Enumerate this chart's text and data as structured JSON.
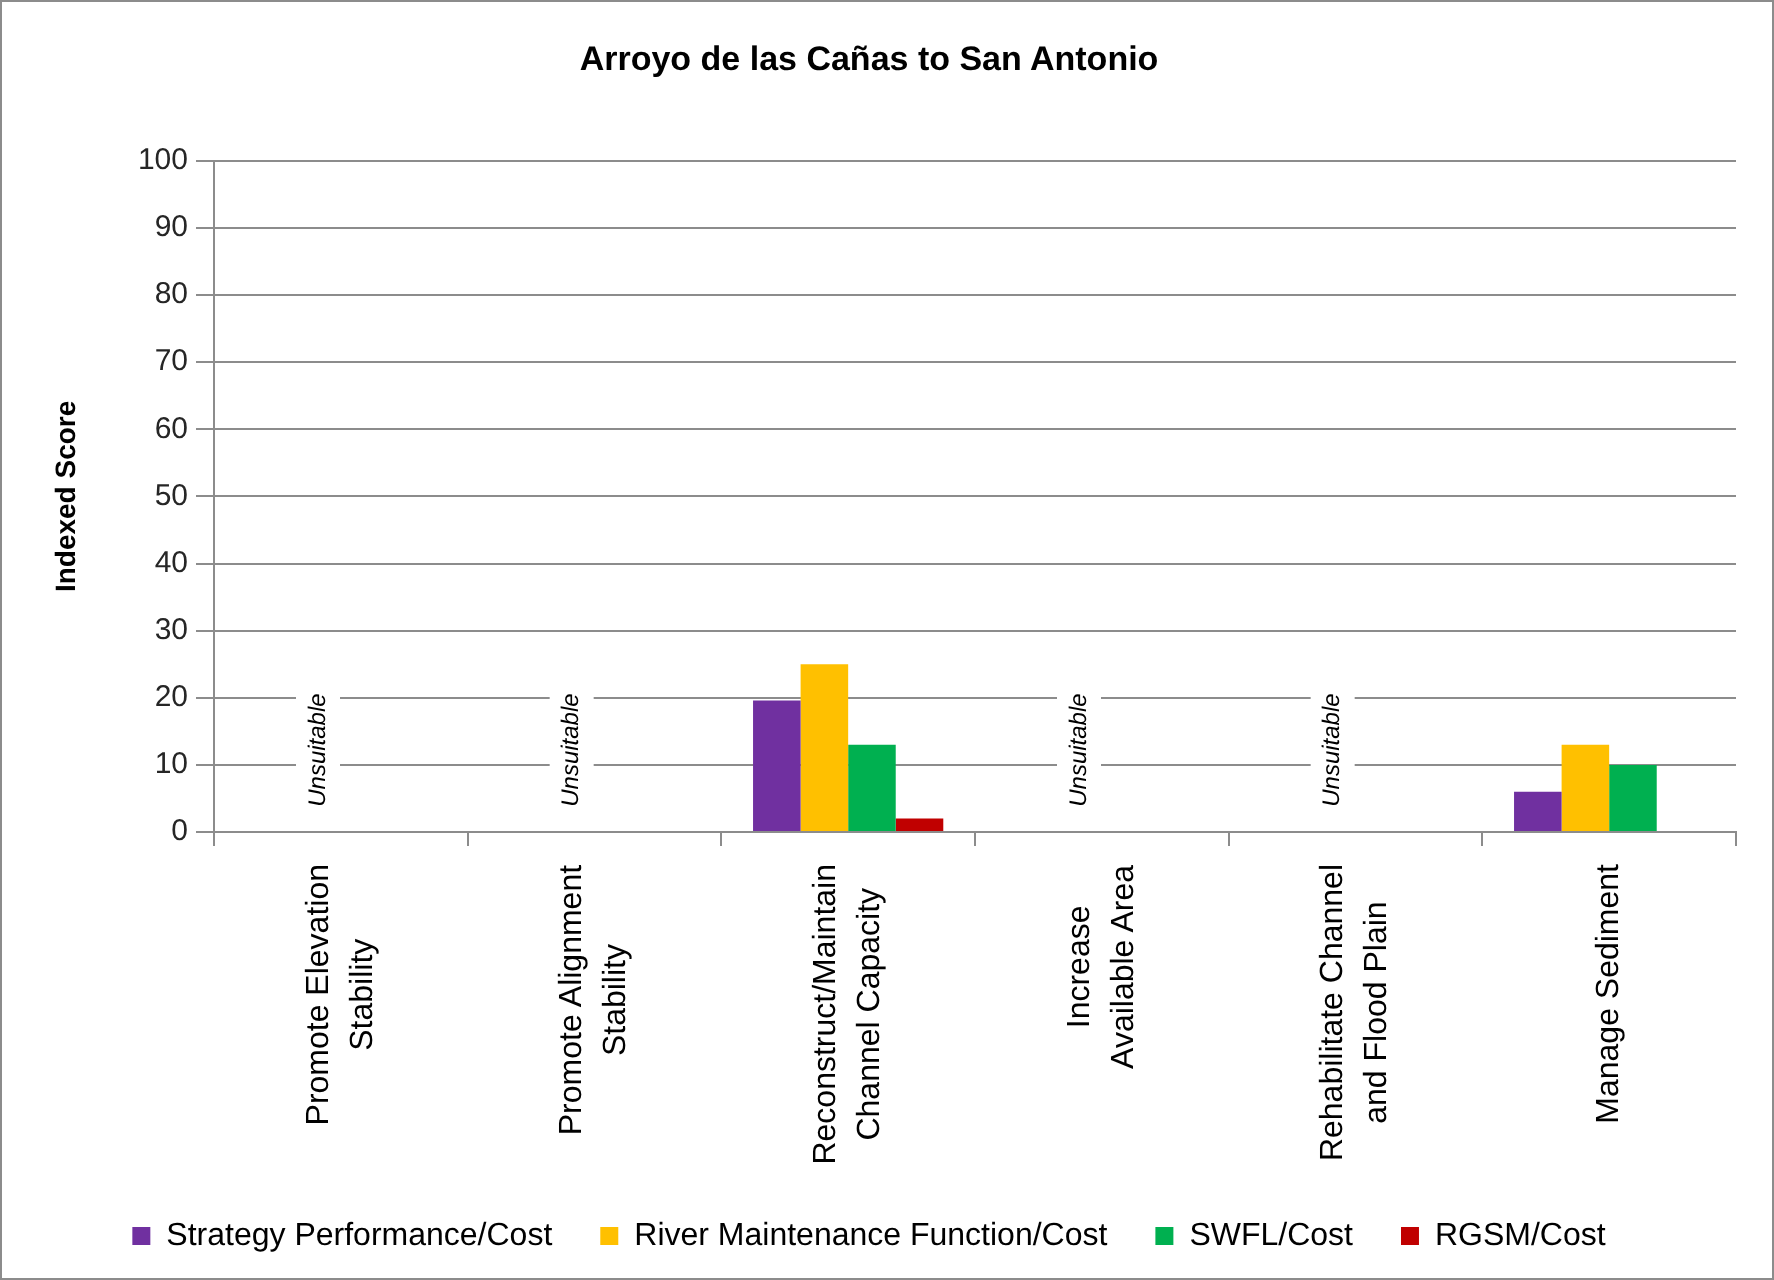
{
  "chart_data": {
    "type": "bar",
    "title": "Arroyo de las Cañas to San Antonio",
    "ylabel": "Indexed Score",
    "categories": [
      "Promote Elevation Stability",
      "Promote Alignment Stability",
      "Reconstruct/Maintain Channel Capacity",
      "Increase Available Area",
      "Rehabilitate Channel and Flood Plain",
      "Manage Sediment"
    ],
    "series": [
      {
        "name": "Strategy Performance/Cost",
        "color": "#7030a0",
        "values": [
          null,
          null,
          19.6,
          null,
          null,
          6
        ]
      },
      {
        "name": "River Maintenance Function/Cost",
        "color": "#ffc000",
        "values": [
          null,
          null,
          25,
          null,
          null,
          13
        ]
      },
      {
        "name": "SWFL/Cost",
        "color": "#00b050",
        "values": [
          null,
          null,
          13,
          null,
          null,
          10
        ]
      },
      {
        "name": "RGSM/Cost",
        "color": "#c00000",
        "values": [
          null,
          null,
          2,
          null,
          null,
          null
        ]
      }
    ],
    "ylim": [
      0,
      100
    ],
    "yticks": [
      0,
      10,
      20,
      30,
      40,
      50,
      60,
      70,
      80,
      90,
      100
    ],
    "grid": "y",
    "legend": "bottom",
    "annotations": [
      "Unsuitable",
      "Unsuitable",
      "Unsuitable",
      "Unsuitable"
    ]
  }
}
